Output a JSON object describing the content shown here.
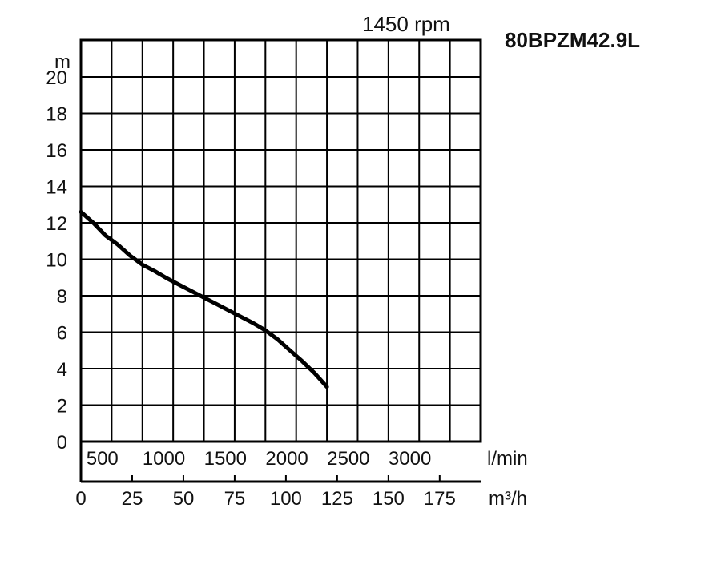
{
  "chart_data": {
    "type": "line",
    "model": "80BPZM42.9L",
    "speed_label": "1450 rpm",
    "y_unit": "m",
    "x_unit_primary": "l/min",
    "x_unit_secondary": "m³/h",
    "ylim": [
      0,
      20
    ],
    "xlim_lmin": [
      0,
      3250
    ],
    "y_ticks": [
      "0",
      "2",
      "4",
      "6",
      "8",
      "10",
      "12",
      "14",
      "16",
      "18",
      "20"
    ],
    "x_ticks_lmin": [
      "500",
      "1000",
      "1500",
      "2000",
      "2500",
      "3000"
    ],
    "x_ticks_m3h": [
      "0",
      "25",
      "50",
      "75",
      "100",
      "125",
      "150",
      "175"
    ],
    "grid": true,
    "series": [
      {
        "x": [
          0,
          100,
          200,
          300,
          400,
          500,
          600,
          700,
          800,
          900,
          1000,
          1100,
          1200,
          1300,
          1400,
          1500,
          1600,
          1700,
          1800,
          1900,
          2000
        ],
        "y": [
          12.6,
          12.0,
          11.3,
          10.8,
          10.2,
          9.7,
          9.35,
          8.95,
          8.6,
          8.25,
          7.9,
          7.55,
          7.2,
          6.85,
          6.5,
          6.1,
          5.6,
          5.0,
          4.4,
          3.75,
          3.0
        ]
      }
    ]
  }
}
